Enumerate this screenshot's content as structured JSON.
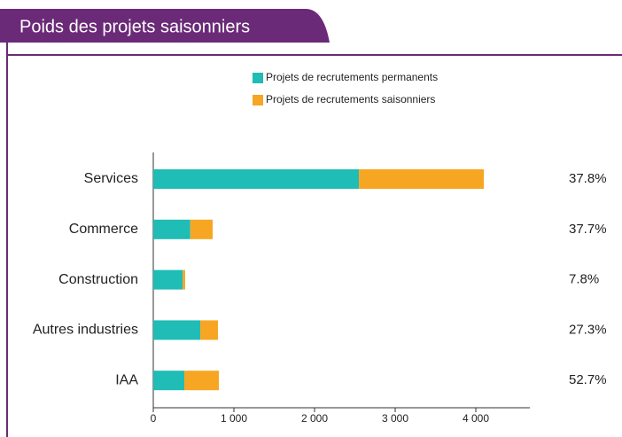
{
  "chart_data": {
    "type": "stacked_barh",
    "title": "Poids des projets saisonniers",
    "categories": [
      "Services",
      "Commerce",
      "Construction",
      "Autres industries",
      "IAA"
    ],
    "series": [
      {
        "name": "Projets de recrutements permanents",
        "color": "#20bcb6",
        "values": [
          2550,
          459,
          364,
          583,
          385
        ]
      },
      {
        "name": "Projets de recrutements saisonniers",
        "color": "#f6a623",
        "values": [
          1550,
          277,
          31,
          219,
          428
        ]
      }
    ],
    "shares": {
      "values": [
        37.8,
        37.7,
        7.8,
        27.3,
        52.7
      ],
      "value_labels": [
        "37.8%",
        "37.7%",
        "7.8%",
        "27.3%",
        "52.7%"
      ]
    },
    "xlim": [
      0,
      4670
    ],
    "xticks": [
      0,
      {
        "value": 1000,
        "label": "1 000"
      },
      {
        "value": 2000,
        "label": "2 000"
      },
      {
        "value": 3000,
        "label": "3 000"
      },
      {
        "value": 4000,
        "label": "4 000"
      }
    ],
    "legend": "top"
  }
}
